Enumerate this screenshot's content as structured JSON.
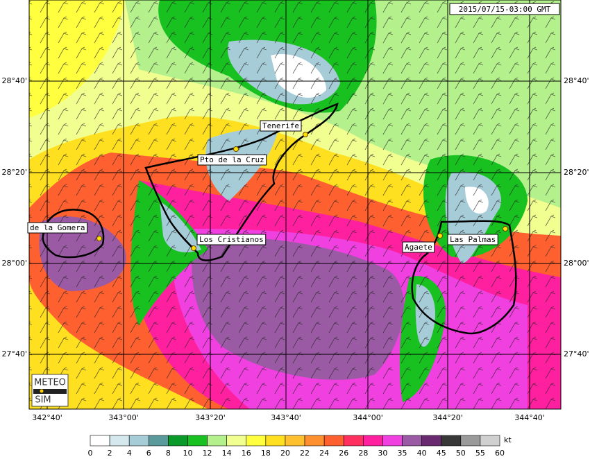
{
  "map": {
    "timestamp": "2015/07/15-03:00 GMT",
    "places": [
      {
        "label": "Tenerife"
      },
      {
        "label": "Pto de la Cruz"
      },
      {
        "label": "de la Gomera"
      },
      {
        "label": "Los Cristianos"
      },
      {
        "label": "Agaete"
      },
      {
        "label": "Las Palmas"
      }
    ],
    "longitude_labels": [
      "342°40'",
      "343°00'",
      "343°20'",
      "343°40'",
      "344°00'",
      "344°20'",
      "344°40'"
    ],
    "latitude_labels": [
      "28°40'",
      "28°20'",
      "28°00'",
      "27°40'"
    ],
    "logo": {
      "top": "METEO",
      "bottom": "SIM"
    }
  },
  "legend": {
    "unit": "kt",
    "ticks": [
      0,
      2,
      4,
      6,
      8,
      10,
      12,
      14,
      16,
      18,
      20,
      22,
      24,
      26,
      28,
      30,
      35,
      40,
      45,
      50,
      55,
      60
    ],
    "colors": [
      "#ffffff",
      "#d4e8ee",
      "#a6ccd8",
      "#5a9a9c",
      "#0a9a2a",
      "#18c020",
      "#b4f08c",
      "#f0ff90",
      "#ffff40",
      "#ffe020",
      "#ffc030",
      "#ff9030",
      "#ff6030",
      "#ff3060",
      "#ff20a0",
      "#f040e0",
      "#9a5aa4",
      "#6a2a70",
      "#383838",
      "#9a9a9a",
      "#d0d0d0"
    ]
  }
}
